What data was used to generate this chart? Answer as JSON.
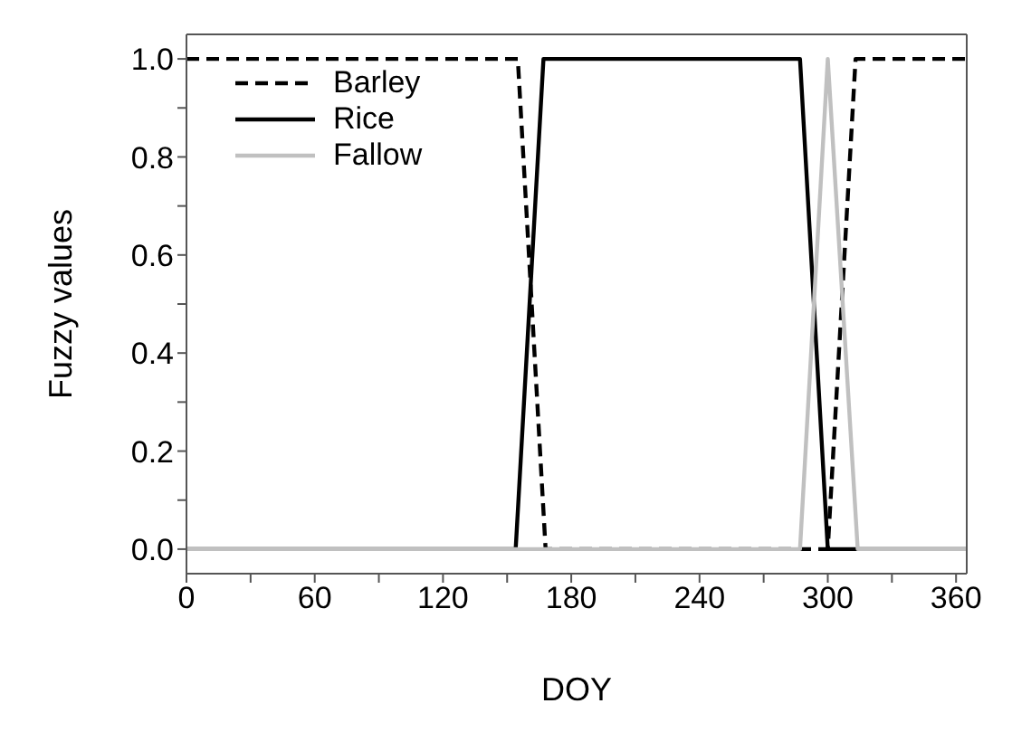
{
  "chart_data": {
    "type": "line",
    "xlabel": "DOY",
    "ylabel": "Fuzzy values",
    "xlim": [
      0,
      365
    ],
    "ylim": [
      -0.05,
      1.05
    ],
    "xticks": [
      0,
      {
        "value": 30,
        "label": null
      },
      60,
      {
        "value": 90,
        "label": null
      },
      120,
      {
        "value": 150,
        "label": null
      },
      180,
      {
        "value": 210,
        "label": null
      },
      240,
      {
        "value": 270,
        "label": null
      },
      300,
      {
        "value": 330,
        "label": null
      },
      360
    ],
    "yticks": [
      {
        "value": 0,
        "label": "0.0"
      },
      {
        "value": 0.1,
        "label": null
      },
      {
        "value": 0.2,
        "label": "0.2"
      },
      {
        "value": 0.3,
        "label": null
      },
      {
        "value": 0.4,
        "label": "0.4"
      },
      {
        "value": 0.5,
        "label": null
      },
      {
        "value": 0.6,
        "label": "0.6"
      },
      {
        "value": 0.7,
        "label": null
      },
      {
        "value": 0.8,
        "label": "0.8"
      },
      {
        "value": 0.9,
        "label": null
      },
      {
        "value": 1,
        "label": "1.0"
      }
    ],
    "legend": "top left",
    "marker": "none",
    "series": [
      {
        "name": "Barley",
        "color": "#000000",
        "line_style": "dashed",
        "x": [
          0,
          155,
          168,
          300,
          313,
          365
        ],
        "values": [
          1,
          1,
          0,
          0,
          1,
          1
        ]
      },
      {
        "name": "Rice",
        "color": "#000000",
        "line_style": "solid",
        "x": [
          0,
          154,
          167,
          287,
          300,
          365
        ],
        "values": [
          0,
          0,
          1,
          1,
          0,
          0
        ]
      },
      {
        "name": "Fallow",
        "color": "#c0c0c0",
        "line_style": "solid",
        "x": [
          0,
          287,
          300,
          314,
          365
        ],
        "values": [
          0,
          0,
          1,
          0,
          0
        ]
      }
    ]
  }
}
